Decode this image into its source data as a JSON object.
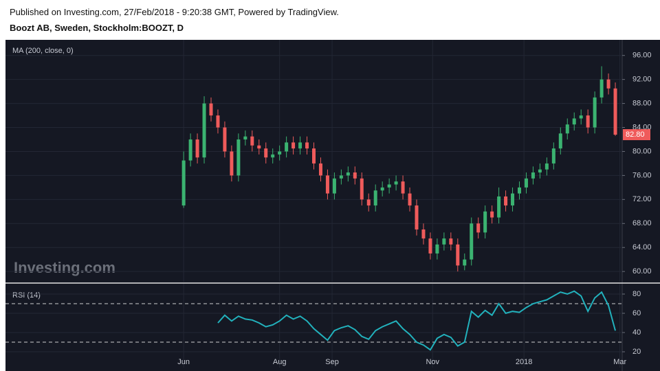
{
  "header": {
    "published": "Published on Investing.com, 27/Feb/2018 - 9:20:38 GMT, Powered by TradingView.",
    "symbol": "Boozt AB, Sweden, Stockholm:BOOZT, D"
  },
  "chart_data": {
    "type": "candlestick",
    "indicator_label": "MA (200, close, 0)",
    "watermark": "Investing.com",
    "up_color": "#3bb371",
    "down_color": "#ef5b5b",
    "x": [
      0,
      3,
      6,
      9,
      12,
      15,
      18,
      21,
      24,
      27,
      30,
      33,
      36,
      39,
      42,
      45,
      48,
      51,
      54,
      57,
      60,
      63,
      66,
      69,
      72,
      75,
      78,
      81,
      84,
      87,
      90,
      93,
      96,
      99,
      102,
      105,
      108,
      111,
      114,
      117,
      120,
      123,
      126,
      129,
      132,
      135,
      138,
      141,
      144,
      147,
      150,
      153,
      156,
      159,
      162,
      165,
      168,
      171,
      174,
      177,
      180,
      183,
      186,
      189
    ],
    "open": [
      71,
      78.5,
      82,
      79,
      88,
      86,
      84,
      80,
      76,
      82,
      82.5,
      81,
      80.5,
      79,
      79.5,
      80,
      81.5,
      80.5,
      81.5,
      80.5,
      78,
      76,
      73,
      75.5,
      76,
      76.5,
      75.5,
      72,
      71,
      73.5,
      74,
      74.5,
      75,
      73,
      71,
      67,
      65.5,
      63,
      64.5,
      65.5,
      64.5,
      61,
      62,
      68,
      66.5,
      70,
      69,
      72.5,
      71,
      73,
      74,
      75.5,
      76.5,
      77,
      78,
      80.5,
      83,
      84.5,
      85.5,
      86,
      84,
      89,
      92,
      90.5
    ],
    "high": [
      80,
      83,
      83,
      89.2,
      89,
      87,
      85,
      81,
      83,
      83.5,
      83.5,
      82,
      81.5,
      80.5,
      81,
      82.5,
      82.5,
      82.5,
      82.5,
      81.5,
      79,
      77,
      76.5,
      77,
      77.5,
      77.5,
      76.5,
      73,
      74.5,
      75,
      75.5,
      76,
      76,
      74,
      72,
      68,
      66.5,
      65.5,
      66.5,
      66.5,
      65.5,
      63,
      69,
      69,
      71,
      71,
      74,
      73.5,
      74,
      75,
      76.5,
      77.5,
      78,
      79,
      81.5,
      84,
      85.5,
      86.5,
      87,
      87,
      90,
      94.2,
      93,
      91.5
    ],
    "low": [
      70.6,
      77.5,
      78,
      78,
      85,
      83,
      79,
      75,
      75,
      81,
      80,
      79.5,
      78,
      78,
      78.5,
      79,
      79.5,
      79.5,
      79.5,
      77,
      75,
      72,
      72,
      74.5,
      75,
      74.5,
      71,
      70,
      70,
      72.5,
      73,
      73.5,
      72,
      70,
      66,
      64.5,
      62,
      62,
      63.5,
      63.5,
      60,
      60.2,
      61,
      65.5,
      65.5,
      68,
      68,
      70,
      70,
      72,
      73,
      74.5,
      75.5,
      76,
      77,
      79.5,
      82,
      83.5,
      84.5,
      83,
      83,
      88,
      89.5,
      82.6
    ],
    "close": [
      78.5,
      82,
      79,
      88,
      86,
      84,
      80,
      76,
      82,
      82.5,
      81,
      80.5,
      79,
      79.5,
      80,
      81.5,
      80.5,
      81.5,
      80.5,
      78,
      76,
      73,
      75.5,
      76,
      76.5,
      75.5,
      72,
      71,
      73.5,
      74,
      74.5,
      75,
      73,
      71,
      67,
      65.5,
      63,
      64.5,
      65.5,
      64.5,
      61,
      62,
      68,
      66.5,
      70,
      69,
      72.5,
      71,
      73,
      74,
      75.5,
      76.5,
      77,
      78,
      80.5,
      83,
      84.5,
      85.5,
      86,
      84,
      89,
      92,
      90.5,
      82.8
    ],
    "last_price": {
      "value": 82.8,
      "label": "82.80"
    },
    "xlim": [
      -78,
      192
    ],
    "xticks": [
      {
        "value": 0,
        "label": "Jun"
      },
      {
        "value": 42,
        "label": "Aug"
      },
      {
        "value": 65,
        "label": "Sep"
      },
      {
        "value": 109,
        "label": "Nov"
      },
      {
        "value": 149,
        "label": "2018"
      },
      {
        "value": 191,
        "label": "Mar"
      }
    ],
    "ylim": [
      58.3,
      98.6
    ],
    "yticks": [
      {
        "value": 60,
        "label": "60.00"
      },
      {
        "value": 64,
        "label": "64.00"
      },
      {
        "value": 68,
        "label": "68.00"
      },
      {
        "value": 72,
        "label": "72.00"
      },
      {
        "value": 76,
        "label": "76.00"
      },
      {
        "value": 80,
        "label": "80.00"
      },
      {
        "value": 84,
        "label": "84.00"
      },
      {
        "value": 88,
        "label": "88.00"
      },
      {
        "value": 92,
        "label": "92.00"
      },
      {
        "value": 96,
        "label": "96.00"
      }
    ],
    "grid": true,
    "rsi": {
      "name": "RSI (14)",
      "color": "#22b2bd",
      "values": [
        null,
        null,
        null,
        null,
        null,
        50,
        58,
        52,
        57,
        54,
        53,
        50,
        46,
        48,
        52,
        58,
        54,
        57,
        52,
        44,
        38,
        32,
        42,
        45,
        47,
        43,
        36,
        33,
        42,
        46,
        49,
        52,
        44,
        38,
        30,
        27,
        22,
        34,
        38,
        35,
        26,
        30,
        62,
        56,
        63,
        58,
        70,
        60,
        62,
        61,
        66,
        70,
        72,
        74,
        78,
        82,
        80,
        83,
        78,
        62,
        76,
        82,
        68,
        42
      ],
      "ylim": [
        3.6,
        90.7
      ],
      "yticks": [
        20,
        40,
        60,
        80
      ],
      "levels": [
        70,
        30
      ]
    }
  }
}
